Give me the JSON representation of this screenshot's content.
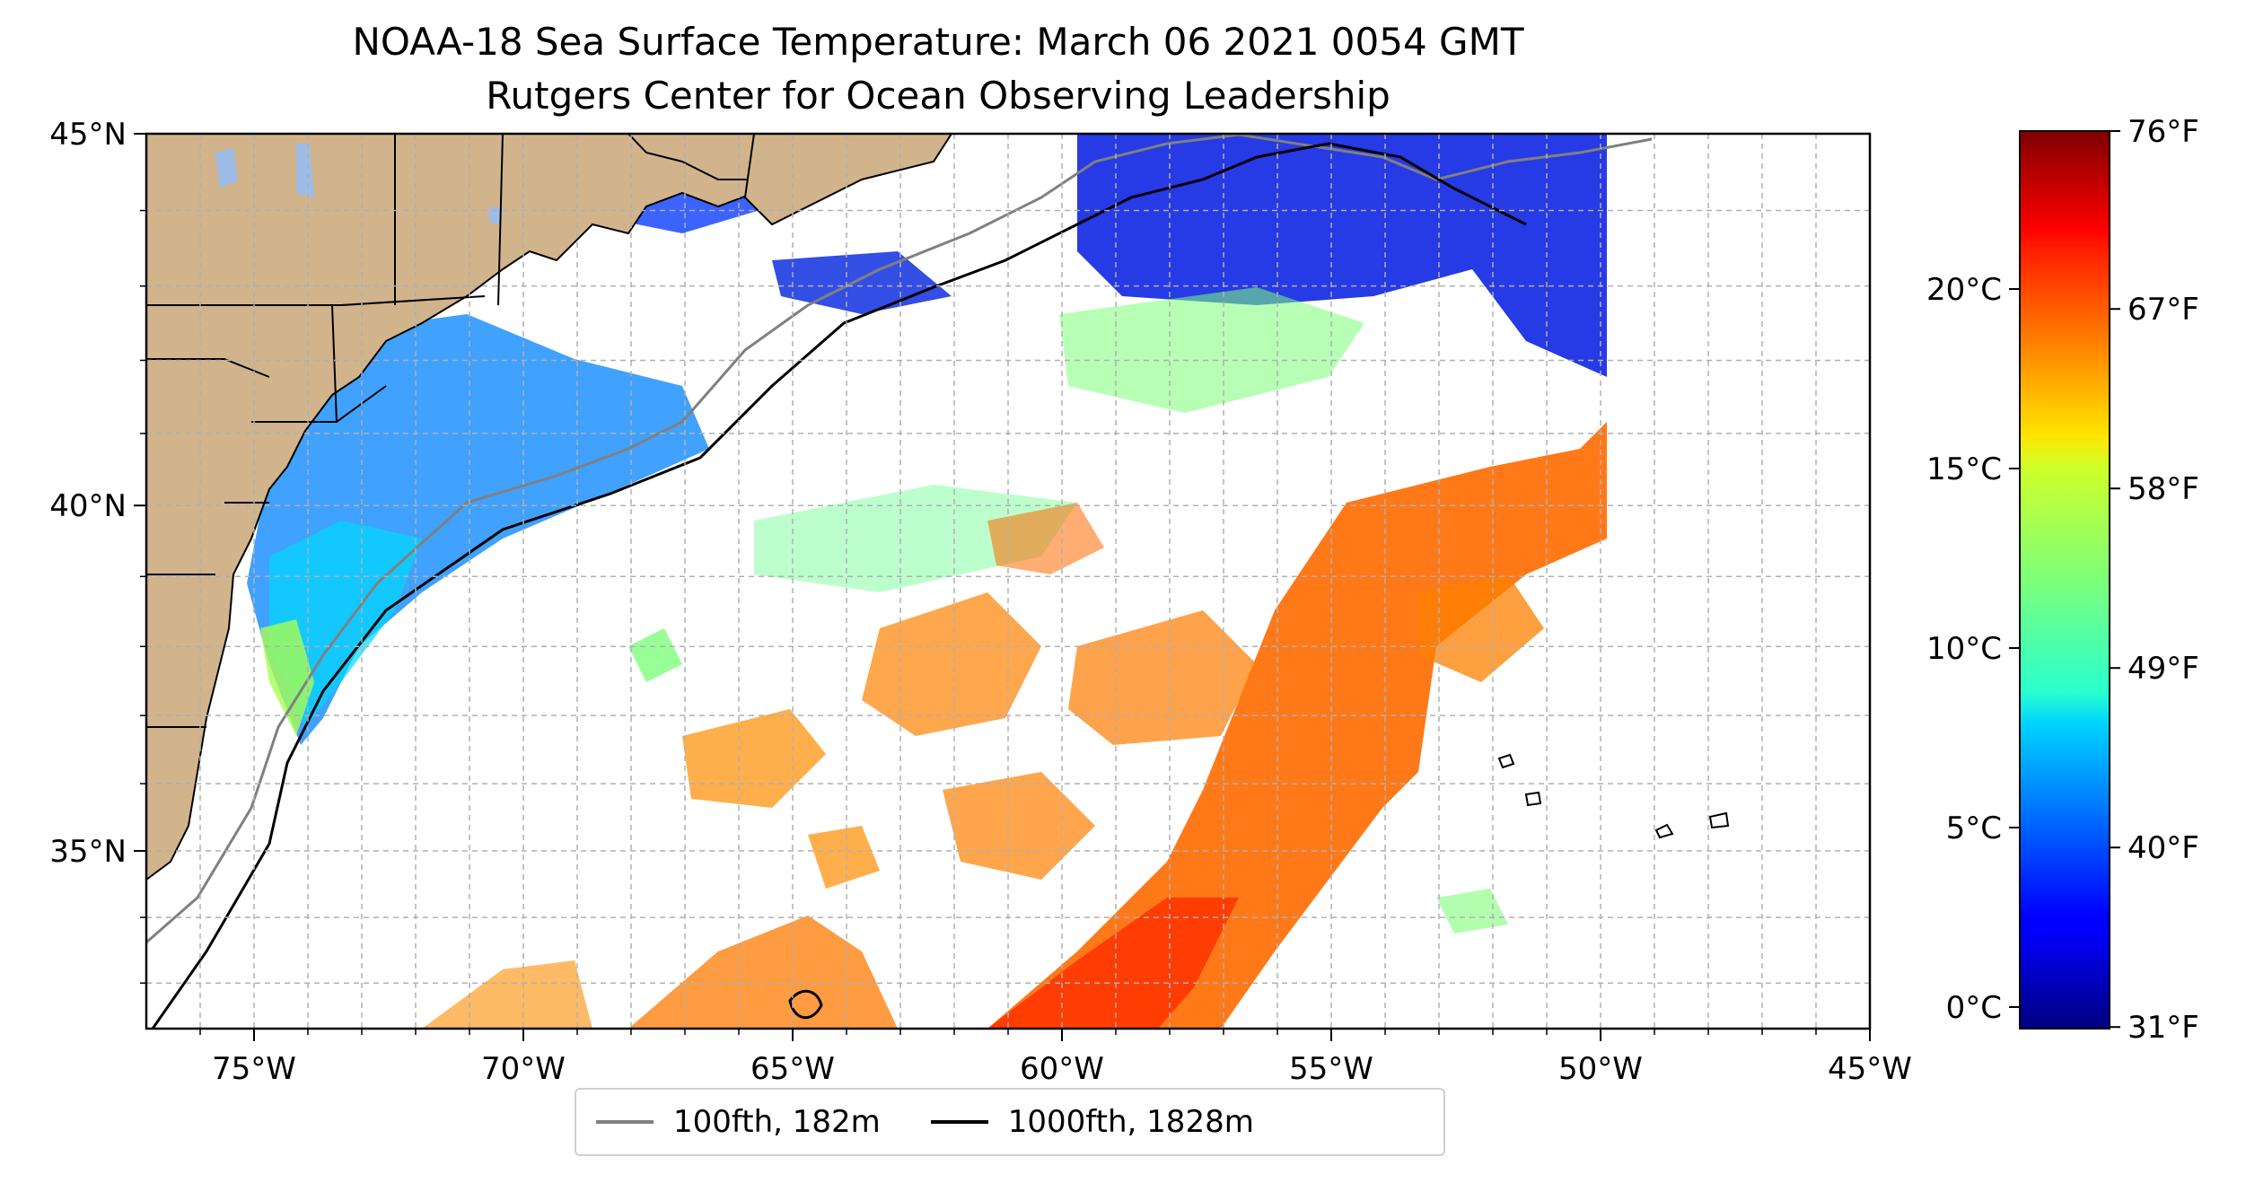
{
  "title": {
    "line1": "NOAA-18 Sea Surface Temperature: March 06 2021 0054 GMT",
    "line2": "Rutgers Center for Ocean Observing Leadership"
  },
  "map": {
    "lon_range": [
      -77,
      -45
    ],
    "lat_range": [
      32.3,
      45
    ],
    "x_ticks": [
      "75°W",
      "70°W",
      "65°W",
      "60°W",
      "55°W",
      "50°W",
      "45°W"
    ],
    "y_ticks": [
      "45°N",
      "40°N",
      "35°N"
    ],
    "grid": true,
    "land_color": "#d2b48c",
    "lake_color": "#9dbde8",
    "ocean_color": "#ffffff"
  },
  "colorbar": {
    "colormap": "jet",
    "range_celsius": [
      -0.6,
      24.4
    ],
    "celsius_ticks": [
      "0°C",
      "5°C",
      "10°C",
      "15°C",
      "20°C"
    ],
    "fahrenheit_ticks": [
      "31°F",
      "40°F",
      "49°F",
      "58°F",
      "67°F",
      "76°F"
    ]
  },
  "legend": {
    "placement": "bottom-center",
    "items": [
      {
        "label": "100fth, 182m",
        "color": "#808080"
      },
      {
        "label": "1000fth, 1828m",
        "color": "#000000"
      }
    ]
  }
}
